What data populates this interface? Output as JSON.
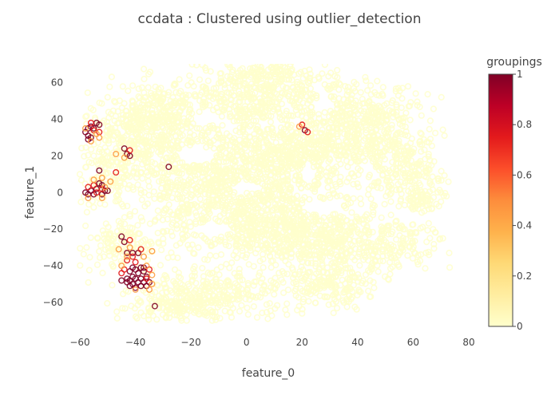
{
  "chart_data": {
    "type": "scatter",
    "title": "ccdata : Clustered using outlier_detection",
    "xlabel": "feature_0",
    "ylabel": "feature_1",
    "xlim": [
      -66,
      80
    ],
    "ylim": [
      -78,
      74
    ],
    "x_ticks": [
      -60,
      -40,
      -20,
      0,
      20,
      40,
      60,
      80
    ],
    "y_ticks": [
      -60,
      -40,
      -20,
      0,
      20,
      40,
      60
    ],
    "x_tick_labels": [
      "−60",
      "−40",
      "−20",
      "0",
      "20",
      "40",
      "60",
      "80"
    ],
    "y_tick_labels": [
      "−60",
      "−40",
      "−20",
      "0",
      "20",
      "40",
      "60"
    ],
    "grid": false,
    "marker": "open-circle",
    "colorscale": [
      [
        "0",
        "#ffffcc"
      ],
      [
        "0.125",
        "#ffeda0"
      ],
      [
        "0.25",
        "#fed976"
      ],
      [
        "0.375",
        "#feb24c"
      ],
      [
        "0.5",
        "#fd8d3c"
      ],
      [
        "0.625",
        "#fc4e2a"
      ],
      [
        "0.75",
        "#e31a1c"
      ],
      [
        "0.875",
        "#bd0026"
      ],
      [
        "1",
        "#800026"
      ]
    ],
    "colorbar": {
      "title": "groupings",
      "ticks": [
        0,
        0.2,
        0.4,
        0.6,
        0.8,
        1
      ],
      "tick_labels": [
        "0",
        "0.2",
        "0.4",
        "0.6",
        "0.8",
        "1"
      ]
    },
    "series": [
      {
        "color_value": 0,
        "blobs": [
          [
            -5,
            8,
            44,
            44
          ],
          [
            -30,
            44,
            16,
            14
          ],
          [
            -40,
            36,
            14,
            10
          ],
          [
            5,
            54,
            22,
            14
          ],
          [
            10,
            66,
            12,
            6
          ],
          [
            40,
            44,
            22,
            14
          ],
          [
            48,
            28,
            18,
            10
          ],
          [
            57,
            8,
            14,
            14
          ],
          [
            63,
            -4,
            8,
            6
          ],
          [
            40,
            -28,
            28,
            14
          ],
          [
            30,
            -50,
            18,
            12
          ],
          [
            -10,
            -55,
            22,
            12
          ],
          [
            -28,
            -62,
            16,
            10
          ],
          [
            -50,
            10,
            8,
            14
          ],
          [
            -45,
            -30,
            10,
            10
          ],
          [
            -38,
            24,
            10,
            8
          ],
          [
            20,
            20,
            16,
            16
          ],
          [
            15,
            -20,
            22,
            16
          ]
        ],
        "holes": [
          [
            -18,
            20,
            7,
            5
          ],
          [
            -12,
            -20,
            7,
            4
          ],
          [
            0,
            3,
            6,
            3
          ],
          [
            22,
            10,
            3,
            6
          ],
          [
            28,
            48,
            4,
            4
          ],
          [
            27,
            -8,
            8,
            4
          ],
          [
            -15,
            40,
            5,
            4
          ]
        ],
        "points": [
          [
            -50,
            52
          ],
          [
            -52,
            38
          ],
          [
            -30,
            42
          ],
          [
            -40,
            28
          ],
          [
            -60,
            10
          ],
          [
            -55,
            20
          ],
          [
            48,
            28
          ],
          [
            58,
            25
          ],
          [
            62,
            12
          ],
          [
            66,
            5
          ],
          [
            70,
            0
          ],
          [
            72,
            -2
          ],
          [
            70,
            -5
          ],
          [
            35,
            -60
          ],
          [
            14,
            -64
          ],
          [
            20,
            -66
          ],
          [
            -15,
            -65
          ],
          [
            -25,
            -67
          ],
          [
            -35,
            -65
          ],
          [
            -38,
            -60
          ],
          [
            4,
            66
          ],
          [
            12,
            62
          ],
          [
            -48,
            -40
          ],
          [
            52,
            -35
          ],
          [
            45,
            -42
          ]
        ]
      },
      {
        "color_value": 1,
        "points": [
          [
            -57,
            35
          ],
          [
            -58,
            33
          ],
          [
            -57,
            31
          ],
          [
            -56,
            30
          ],
          [
            -57,
            29
          ],
          [
            -55,
            35
          ],
          [
            -54,
            38
          ],
          [
            -56,
            36
          ],
          [
            -53,
            37
          ],
          [
            -58,
            0
          ],
          [
            -56,
            1
          ],
          [
            -55,
            -1
          ],
          [
            -57,
            -1
          ],
          [
            -54,
            2
          ],
          [
            -53,
            5
          ],
          [
            -52,
            4
          ],
          [
            -51,
            1
          ],
          [
            -52,
            -1
          ],
          [
            -50,
            1
          ],
          [
            -53,
            12
          ],
          [
            -44,
            24
          ],
          [
            -43,
            21
          ],
          [
            -42,
            20
          ],
          [
            -41,
            -41
          ],
          [
            -42,
            -43
          ],
          [
            -40,
            -42
          ],
          [
            -38,
            -41
          ],
          [
            -37,
            -43
          ],
          [
            -39,
            -44
          ],
          [
            -41,
            -46
          ],
          [
            -40,
            -47
          ],
          [
            -38,
            -47
          ],
          [
            -36,
            -46
          ],
          [
            -42,
            -48
          ],
          [
            -43,
            -49
          ],
          [
            -41,
            -50
          ],
          [
            -39,
            -49
          ],
          [
            -37,
            -49
          ],
          [
            -38,
            -51
          ],
          [
            -36,
            -51
          ],
          [
            -35,
            -49
          ],
          [
            -42,
            -51
          ],
          [
            -40,
            -52
          ],
          [
            -43,
            -47
          ],
          [
            -44,
            -27
          ],
          [
            -45,
            -24
          ],
          [
            -43,
            -33
          ],
          [
            -41,
            -33
          ],
          [
            -39,
            -33
          ],
          [
            -37,
            -41
          ],
          [
            -28,
            14
          ],
          [
            -33,
            -62
          ],
          [
            21,
            34
          ],
          [
            -45,
            -48
          ]
        ]
      },
      {
        "color_value": 0.75,
        "points": [
          [
            -55,
            34
          ],
          [
            -56,
            38
          ],
          [
            -53,
            33
          ],
          [
            -57,
            3
          ],
          [
            -55,
            4
          ],
          [
            -54,
            0
          ],
          [
            -52,
            2
          ],
          [
            -47,
            11
          ],
          [
            -41,
            -35
          ],
          [
            -43,
            -37
          ],
          [
            -45,
            -44
          ],
          [
            -44,
            -42
          ],
          [
            -36,
            -47
          ],
          [
            -35,
            -42
          ],
          [
            -40,
            -38
          ],
          [
            -42,
            -26
          ],
          [
            -42,
            23
          ],
          [
            -38,
            -31
          ],
          [
            20,
            37
          ],
          [
            22,
            33
          ]
        ]
      },
      {
        "color_value": 0.45,
        "points": [
          [
            -54,
            32
          ],
          [
            -53,
            30
          ],
          [
            -56,
            28
          ],
          [
            -57,
            -3
          ],
          [
            -51,
            3
          ],
          [
            -55,
            7
          ],
          [
            -52,
            -3
          ],
          [
            -43,
            -35
          ],
          [
            -45,
            -40
          ],
          [
            -34,
            -50
          ],
          [
            -34,
            -45
          ],
          [
            -36,
            -40
          ],
          [
            -34,
            -32
          ],
          [
            -37,
            -35
          ],
          [
            -46,
            -31
          ],
          [
            -42,
            -30
          ],
          [
            -40,
            -53
          ],
          [
            -35,
            -53
          ],
          [
            -44,
            19
          ],
          [
            -47,
            21
          ],
          [
            19,
            36
          ],
          [
            -58,
            35
          ],
          [
            -52,
            8
          ],
          [
            -49,
            6
          ]
        ]
      }
    ]
  }
}
